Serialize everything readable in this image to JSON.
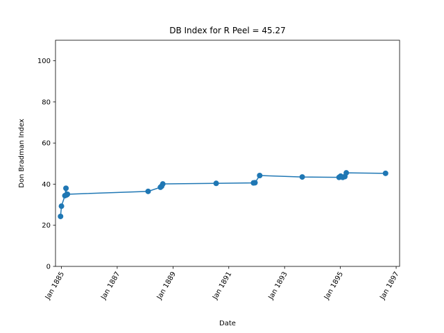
{
  "chart_data": {
    "type": "line",
    "title": "DB Index for R Peel = 45.27",
    "xlabel": "Date",
    "ylabel": "Don Bradman Index",
    "xlim": [
      "1884-10-15",
      "1897-02-15"
    ],
    "ylim": [
      0,
      110
    ],
    "x_ticks": [
      {
        "date": "1885-01-01",
        "label": "Jan 1885"
      },
      {
        "date": "1887-01-01",
        "label": "Jan 1887"
      },
      {
        "date": "1889-01-01",
        "label": "Jan 1889"
      },
      {
        "date": "1891-01-01",
        "label": "Jan 1891"
      },
      {
        "date": "1893-01-01",
        "label": "Jan 1893"
      },
      {
        "date": "1895-01-01",
        "label": "Jan 1895"
      },
      {
        "date": "1897-01-01",
        "label": "Jan 1897"
      }
    ],
    "y_ticks": [
      0,
      20,
      40,
      60,
      80,
      100
    ],
    "grid": false,
    "color": "#1f77b4",
    "series": [
      {
        "x": [
          "1884-12-20",
          "1885-01-01",
          "1885-02-15",
          "1885-03-01",
          "1885-03-10",
          "1885-03-20",
          "1888-02-10",
          "1888-07-20",
          "1888-08-05",
          "1888-08-20",
          "1890-07-20",
          "1891-11-20",
          "1891-12-10",
          "1892-02-10",
          "1893-08-20",
          "1894-12-15",
          "1895-01-05",
          "1895-02-01",
          "1895-03-01",
          "1895-03-20",
          "1896-08-15"
        ],
        "y": [
          24.3,
          29.3,
          34.4,
          38.0,
          34.8,
          35.1,
          36.5,
          38.5,
          39.0,
          40.1,
          40.4,
          40.6,
          40.7,
          44.2,
          43.5,
          43.3,
          43.9,
          43.3,
          43.7,
          45.5,
          45.27
        ]
      }
    ]
  }
}
